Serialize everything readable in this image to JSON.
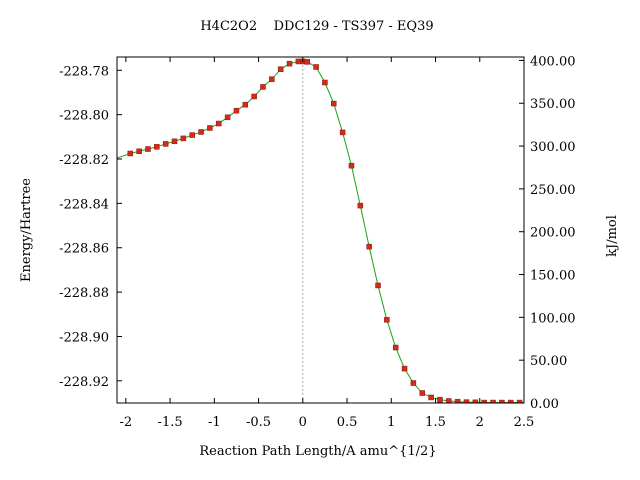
{
  "chart_data": {
    "type": "line",
    "title": "H4C2O2    DDC129 - TS397 - EQ39",
    "xlabel": "Reaction Path Length/A amu^{1/2}",
    "ylabel": "Energy/Hartree",
    "y2label": "kJ/mol",
    "xlim": [
      -2.1,
      2.5
    ],
    "ylim": [
      -228.93,
      -228.774
    ],
    "y2lim": [
      0,
      404
    ],
    "x_ticks": [
      "-2",
      "-1.5",
      "-1",
      "-0.5",
      "0",
      "0.5",
      "1",
      "1.5",
      "2",
      "2.5"
    ],
    "y_ticks": [
      "-228.78",
      "-228.80",
      "-228.82",
      "-228.84",
      "-228.86",
      "-228.88",
      "-228.90",
      "-228.92"
    ],
    "y2_ticks": [
      "400.00",
      "350.00",
      "300.00",
      "250.00",
      "200.00",
      "150.00",
      "100.00",
      "50.00",
      "0.00"
    ],
    "ts_marker_x": 0,
    "grid": false,
    "colors": {
      "curve": "#1aa21a",
      "points": "#d42a1a",
      "ts_line": "#b0b0b0"
    },
    "series": [
      {
        "x": [
          -2.1,
          -1.95,
          -1.85,
          -1.75,
          -1.65,
          -1.55,
          -1.45,
          -1.35,
          -1.25,
          -1.15,
          -1.05,
          -0.95,
          -0.85,
          -0.75,
          -0.65,
          -0.55,
          -0.45,
          -0.35,
          -0.25,
          -0.15,
          -0.05,
          0.0,
          0.05,
          0.15,
          0.25,
          0.35,
          0.45,
          0.55,
          0.65,
          0.75,
          0.85,
          0.95,
          1.05,
          1.15,
          1.25,
          1.35,
          1.45,
          1.55,
          1.65,
          1.75,
          1.85,
          1.95,
          2.05,
          2.15,
          2.25,
          2.35,
          2.45,
          2.5
        ],
        "y": [
          -228.8196,
          -228.8175,
          -228.8165,
          -228.8155,
          -228.8145,
          -228.8132,
          -228.812,
          -228.8107,
          -228.8092,
          -228.8078,
          -228.806,
          -228.804,
          -228.8012,
          -228.7982,
          -228.7955,
          -228.7918,
          -228.7875,
          -228.784,
          -228.7795,
          -228.777,
          -228.776,
          -228.776,
          -228.7762,
          -228.7785,
          -228.7855,
          -228.795,
          -228.808,
          -228.823,
          -228.841,
          -228.8595,
          -228.877,
          -228.8925,
          -228.905,
          -228.9145,
          -228.921,
          -228.9255,
          -228.9275,
          -228.9285,
          -228.9291,
          -228.9294,
          -228.9296,
          -228.9297,
          -228.9298,
          -228.9298,
          -228.9298,
          -228.9298,
          -228.9298,
          -228.9298
        ]
      }
    ],
    "points": {
      "x": [
        -1.95,
        -1.85,
        -1.75,
        -1.65,
        -1.55,
        -1.45,
        -1.35,
        -1.25,
        -1.15,
        -1.05,
        -0.95,
        -0.85,
        -0.75,
        -0.65,
        -0.55,
        -0.45,
        -0.35,
        -0.25,
        -0.15,
        -0.05,
        0.0,
        0.05,
        0.15,
        0.25,
        0.35,
        0.45,
        0.55,
        0.65,
        0.75,
        0.85,
        0.95,
        1.05,
        1.15,
        1.25,
        1.35,
        1.45,
        1.55,
        1.65,
        1.75,
        1.85,
        1.95,
        2.05,
        2.15,
        2.25,
        2.35,
        2.45
      ],
      "y": [
        -228.8175,
        -228.8165,
        -228.8155,
        -228.8145,
        -228.8132,
        -228.812,
        -228.8107,
        -228.8092,
        -228.8078,
        -228.806,
        -228.804,
        -228.8012,
        -228.7982,
        -228.7955,
        -228.7918,
        -228.7875,
        -228.784,
        -228.7795,
        -228.777,
        -228.776,
        -228.776,
        -228.7762,
        -228.7785,
        -228.7855,
        -228.795,
        -228.808,
        -228.823,
        -228.841,
        -228.8595,
        -228.877,
        -228.8925,
        -228.905,
        -228.9145,
        -228.921,
        -228.9255,
        -228.9275,
        -228.9285,
        -228.9291,
        -228.9294,
        -228.9296,
        -228.9297,
        -228.9298,
        -228.9298,
        -228.9298,
        -228.9298,
        -228.9298
      ]
    }
  }
}
